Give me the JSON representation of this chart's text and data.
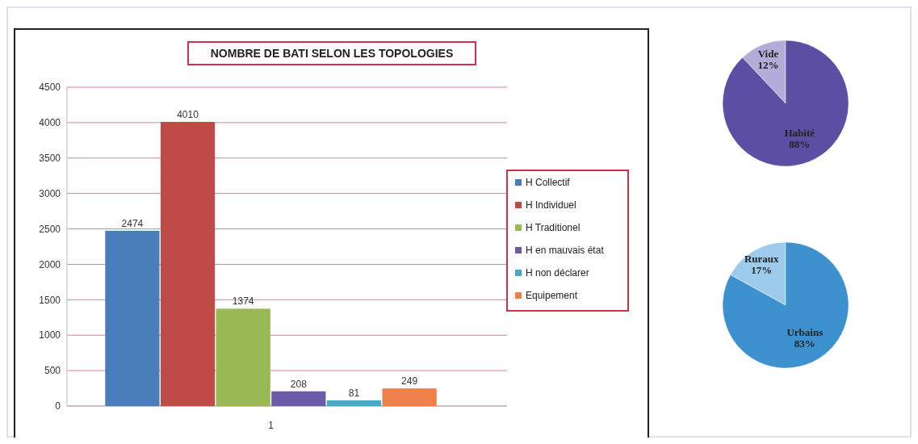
{
  "chart_data": [
    {
      "type": "bar",
      "title": "NOMBRE DE BATI SELON LES TOPOLOGIES",
      "categories": [
        "1"
      ],
      "series": [
        {
          "name": "H Collectif",
          "color": "#4a7ebb",
          "values": [
            2474
          ]
        },
        {
          "name": "H Individuel",
          "color": "#be4b48",
          "values": [
            4010
          ]
        },
        {
          "name": "H Traditionel",
          "color": "#98b954",
          "values": [
            1374
          ]
        },
        {
          "name": "H en mauvais état",
          "color": "#6a5aa8",
          "values": [
            208
          ]
        },
        {
          "name": "H non déclarer",
          "color": "#46aac5",
          "values": [
            81
          ]
        },
        {
          "name": "Equipement",
          "color": "#f0804a",
          "values": [
            249
          ]
        }
      ],
      "ylim": [
        0,
        4500
      ],
      "yticks": [
        0,
        500,
        1000,
        1500,
        2000,
        2500,
        3000,
        3500,
        4000,
        4500
      ],
      "grid": "y",
      "legend": "right",
      "data_labels": true
    },
    {
      "type": "pie",
      "categories": [
        "Vide",
        "Habité"
      ],
      "values": [
        12,
        88
      ],
      "colors": [
        "#b3acd8",
        "#5c4fa3"
      ],
      "value_labels": [
        "12%",
        "88%"
      ]
    },
    {
      "type": "pie",
      "categories": [
        "Ruraux",
        "Urbains"
      ],
      "values": [
        17,
        83
      ],
      "colors": [
        "#9ccbeb",
        "#3d91cf"
      ],
      "value_labels": [
        "17%",
        "83%"
      ]
    }
  ]
}
